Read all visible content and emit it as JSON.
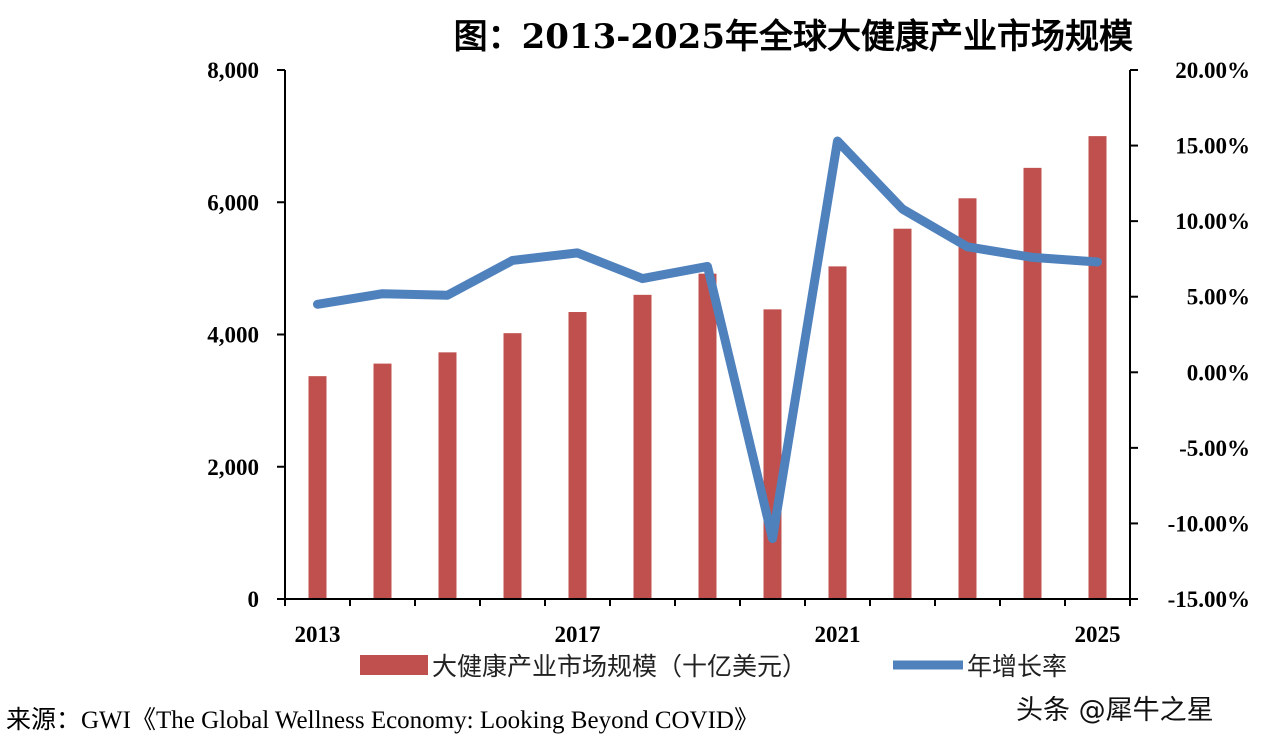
{
  "chart_data": {
    "type": "bar",
    "title": "图：2013-2025年全球大健康产业市场规模",
    "categories": [
      "2013",
      "2014",
      "2015",
      "2016",
      "2017",
      "2018",
      "2019",
      "2020",
      "2021",
      "2022",
      "2023",
      "2024",
      "2025"
    ],
    "x_tick_labels": [
      "2013",
      "2017",
      "2021",
      "2025"
    ],
    "left_axis": {
      "ylim": [
        0,
        8000
      ],
      "ticks": [
        "0",
        "2,000",
        "4,000",
        "6,000",
        "8,000"
      ],
      "tick_values": [
        0,
        2000,
        4000,
        6000,
        8000
      ]
    },
    "right_axis": {
      "ylim": [
        -0.15,
        0.2
      ],
      "ticks": [
        "-15.00%",
        "-10.00%",
        "-5.00%",
        "0.00%",
        "5.00%",
        "10.00%",
        "15.00%",
        "20.00%"
      ],
      "tick_values": [
        -0.15,
        -0.1,
        -0.05,
        0,
        0.05,
        0.1,
        0.15,
        0.2
      ]
    },
    "series": [
      {
        "name": "大健康产业市场规模（十亿美元）",
        "type": "bar",
        "axis": "left",
        "color": "#C0504D",
        "values": [
          3370,
          3560,
          3730,
          4020,
          4340,
          4600,
          4920,
          4380,
          5030,
          5600,
          6060,
          6520,
          7000
        ]
      },
      {
        "name": "年增长率",
        "type": "line",
        "axis": "right",
        "color": "#4F81BD",
        "values": [
          0.045,
          0.052,
          0.051,
          0.074,
          0.079,
          0.062,
          0.07,
          -0.11,
          0.153,
          0.108,
          0.083,
          0.076,
          0.073
        ]
      }
    ],
    "legend_position": "bottom",
    "grid": false
  },
  "source": "来源：GWI《The Global Wellness Economy: Looking Beyond COVID》",
  "watermark": "头条 @犀牛之星"
}
